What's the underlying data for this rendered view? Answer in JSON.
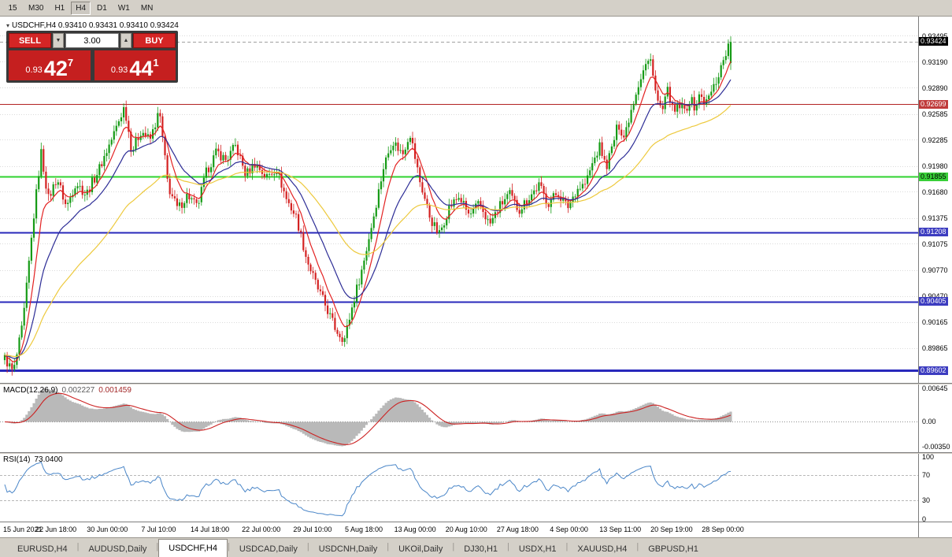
{
  "toolbar": {
    "timeframes": [
      "15",
      "M30",
      "H1",
      "H4",
      "D1",
      "W1",
      "MN"
    ],
    "active": "H4"
  },
  "chart_header": {
    "collapse_icon": "▾",
    "symbol_ohlc": "USDCHF,H4 0.93410 0.93431 0.93410 0.93424"
  },
  "trade_panel": {
    "sell_label": "SELL",
    "buy_label": "BUY",
    "volume": "3.00",
    "spin_down_icon": "▼",
    "spin_up_icon": "▲",
    "sell_price_prefix": "0.93",
    "sell_price_big": "42",
    "sell_price_sup": "7",
    "buy_price_prefix": "0.93",
    "buy_price_big": "44",
    "buy_price_sup": "1"
  },
  "price_axis": {
    "ticks": [
      "0.93495",
      "0.93190",
      "0.92890",
      "0.92585",
      "0.92285",
      "0.91980",
      "0.91680",
      "0.91375",
      "0.91075",
      "0.90770",
      "0.90470",
      "0.90165",
      "0.89865"
    ],
    "badges": [
      {
        "text": "0.93424",
        "bg": "#000000",
        "fg": "#ffffff",
        "name": "current-price-badge"
      },
      {
        "text": "0.92699",
        "bg": "#c03b3b",
        "fg": "#ffffff",
        "name": "red-hline-badge"
      },
      {
        "text": "0.91855",
        "bg": "#38d038",
        "fg": "#000000",
        "name": "green-hline-badge"
      },
      {
        "text": "0.91208",
        "bg": "#3c3cc0",
        "fg": "#ffffff",
        "name": "blue-hline-badge-1"
      },
      {
        "text": "0.90405",
        "bg": "#3c3cc0",
        "fg": "#ffffff",
        "name": "blue-hline-badge-2"
      },
      {
        "text": "0.89602",
        "bg": "#3c3cc0",
        "fg": "#ffffff",
        "name": "blue-hline-badge-3"
      }
    ]
  },
  "macd_panel": {
    "name": "MACD(12,26,9)",
    "value_main": "0.002227",
    "value_signal": "0.001459",
    "axis_top": "0.00645",
    "axis_zero": "0.00",
    "axis_bottom": "-0.00350"
  },
  "rsi_panel": {
    "name": "RSI(14)",
    "value": "73.0400",
    "axis": [
      "100",
      "70",
      "30",
      "0"
    ]
  },
  "tabs": {
    "items": [
      "EURUSD,H4",
      "AUDUSD,Daily",
      "USDCHF,H4",
      "USDCAD,Daily",
      "USDCNH,Daily",
      "UKOil,Daily",
      "DJ30,H1",
      "USDX,H1",
      "XAUUSD,H4",
      "GBPUSD,H1"
    ],
    "active": "USDCHF,H4"
  },
  "chart_data": {
    "type": "candlestick",
    "symbol": "USDCHF",
    "timeframe": "H4",
    "ohlc_current": {
      "open": 0.9341,
      "high": 0.93431,
      "low": 0.9341,
      "close": 0.93424
    },
    "price_range": {
      "min": 0.89464,
      "max": 0.9372
    },
    "bars": 300,
    "close_waypoints": [
      [
        0.0,
        0.8975
      ],
      [
        0.012,
        0.8958
      ],
      [
        0.025,
        0.9015
      ],
      [
        0.04,
        0.914
      ],
      [
        0.05,
        0.9215
      ],
      [
        0.06,
        0.916
      ],
      [
        0.072,
        0.9185
      ],
      [
        0.085,
        0.915
      ],
      [
        0.098,
        0.918
      ],
      [
        0.112,
        0.9165
      ],
      [
        0.13,
        0.9195
      ],
      [
        0.15,
        0.9235
      ],
      [
        0.165,
        0.9268
      ],
      [
        0.175,
        0.9215
      ],
      [
        0.188,
        0.924
      ],
      [
        0.2,
        0.9228
      ],
      [
        0.213,
        0.9262
      ],
      [
        0.225,
        0.9175
      ],
      [
        0.238,
        0.9148
      ],
      [
        0.252,
        0.9165
      ],
      [
        0.265,
        0.915
      ],
      [
        0.278,
        0.9192
      ],
      [
        0.292,
        0.9215
      ],
      [
        0.305,
        0.9205
      ],
      [
        0.318,
        0.9222
      ],
      [
        0.332,
        0.9188
      ],
      [
        0.345,
        0.9202
      ],
      [
        0.36,
        0.9185
      ],
      [
        0.374,
        0.9196
      ],
      [
        0.388,
        0.916
      ],
      [
        0.402,
        0.9138
      ],
      [
        0.416,
        0.909
      ],
      [
        0.43,
        0.9058
      ],
      [
        0.444,
        0.9032
      ],
      [
        0.456,
        0.9008
      ],
      [
        0.468,
        0.8997
      ],
      [
        0.48,
        0.904
      ],
      [
        0.494,
        0.9085
      ],
      [
        0.508,
        0.914
      ],
      [
        0.522,
        0.9198
      ],
      [
        0.534,
        0.9228
      ],
      [
        0.548,
        0.9212
      ],
      [
        0.558,
        0.9238
      ],
      [
        0.572,
        0.918
      ],
      [
        0.586,
        0.9138
      ],
      [
        0.598,
        0.9118
      ],
      [
        0.612,
        0.915
      ],
      [
        0.626,
        0.9163
      ],
      [
        0.64,
        0.914
      ],
      [
        0.654,
        0.9155
      ],
      [
        0.668,
        0.913
      ],
      [
        0.682,
        0.9152
      ],
      [
        0.695,
        0.9166
      ],
      [
        0.708,
        0.9147
      ],
      [
        0.722,
        0.9162
      ],
      [
        0.736,
        0.9176
      ],
      [
        0.748,
        0.9155
      ],
      [
        0.762,
        0.9168
      ],
      [
        0.775,
        0.915
      ],
      [
        0.788,
        0.9172
      ],
      [
        0.8,
        0.9178
      ],
      [
        0.81,
        0.9202
      ],
      [
        0.82,
        0.9222
      ],
      [
        0.828,
        0.9196
      ],
      [
        0.836,
        0.9218
      ],
      [
        0.845,
        0.9248
      ],
      [
        0.853,
        0.9232
      ],
      [
        0.862,
        0.9262
      ],
      [
        0.872,
        0.9292
      ],
      [
        0.882,
        0.9315
      ],
      [
        0.891,
        0.9322
      ],
      [
        0.898,
        0.9275
      ],
      [
        0.906,
        0.9262
      ],
      [
        0.914,
        0.9288
      ],
      [
        0.921,
        0.9258
      ],
      [
        0.929,
        0.9268
      ],
      [
        0.937,
        0.9262
      ],
      [
        0.944,
        0.9276
      ],
      [
        0.951,
        0.9266
      ],
      [
        0.958,
        0.9282
      ],
      [
        0.965,
        0.927
      ],
      [
        0.972,
        0.9282
      ],
      [
        0.979,
        0.9295
      ],
      [
        0.986,
        0.9312
      ],
      [
        0.993,
        0.933
      ],
      [
        1.0,
        0.9342
      ]
    ],
    "last_bar": {
      "open": 0.9318,
      "high": 0.9349,
      "low": 0.931,
      "close": 0.93424
    },
    "grid_prices": [
      0.93495,
      0.9319,
      0.9289,
      0.92585,
      0.92285,
      0.9198,
      0.9168,
      0.91375,
      0.91075,
      0.9077,
      0.9047,
      0.90165,
      0.89865
    ],
    "hlines": [
      {
        "price": 0.92699,
        "color": "#b22222",
        "width": 1
      },
      {
        "price": 0.91855,
        "color": "#2fd32f",
        "width": 2
      },
      {
        "price": 0.91208,
        "color": "#2828bb",
        "width": 2
      },
      {
        "price": 0.90405,
        "color": "#2828bb",
        "width": 2
      },
      {
        "price": 0.89602,
        "color": "#2828bb",
        "width": 3
      }
    ],
    "bid_line": {
      "price": 0.93424,
      "color": "#a0a0a0"
    },
    "moving_averages": [
      {
        "period": 8,
        "color": "#e32222",
        "type": "ema"
      },
      {
        "period": 21,
        "color": "#2d2d96",
        "type": "ema"
      },
      {
        "period": 55,
        "color": "#edc93c",
        "type": "ema"
      }
    ],
    "indicators": {
      "macd": {
        "fast": 12,
        "slow": 26,
        "signal": 9,
        "histogram_color": "#b9b9b9",
        "signal_color": "#cc2222"
      },
      "rsi": {
        "period": 14,
        "color": "#4a86c8",
        "levels": [
          70,
          30
        ]
      }
    },
    "candle_up_color": "#169b16",
    "candle_down_color": "#d42222",
    "time_labels": [
      "15 Jun 2021",
      "22 Jun 18:00",
      "30 Jun 00:00",
      "7 Jul 10:00",
      "14 Jul 18:00",
      "22 Jul 00:00",
      "29 Jul 10:00",
      "5 Aug 18:00",
      "13 Aug 00:00",
      "20 Aug 10:00",
      "27 Aug 18:00",
      "4 Sep 00:00",
      "13 Sep 11:00",
      "20 Sep 19:00",
      "28 Sep 00:00"
    ]
  }
}
